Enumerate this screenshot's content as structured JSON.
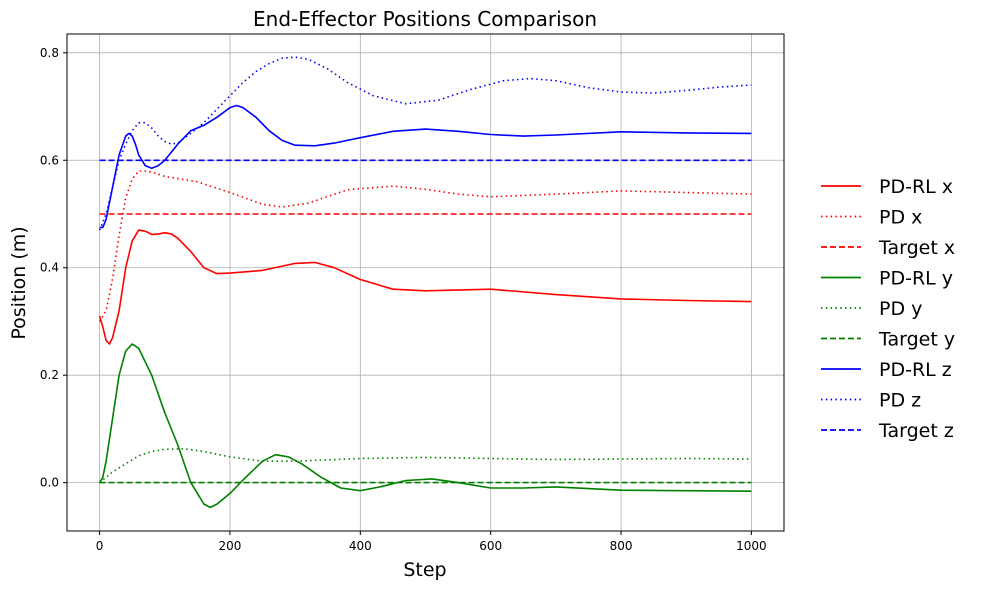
{
  "chart_data": {
    "type": "line",
    "title": "End-Effector Positions Comparison",
    "xlabel": "Step",
    "ylabel": "Position (m)",
    "xlim": [
      -50,
      1050
    ],
    "ylim": [
      -0.09,
      0.835
    ],
    "xticks": [
      0,
      200,
      400,
      600,
      800,
      1000
    ],
    "xtick_labels": [
      "0",
      "200",
      "400",
      "600",
      "800",
      "1000"
    ],
    "yticks": [
      0.0,
      0.2,
      0.4,
      0.6,
      0.8
    ],
    "ytick_labels": [
      "0.0",
      "0.2",
      "0.4",
      "0.6",
      "0.8"
    ],
    "grid": true,
    "legend_position": "right",
    "series": [
      {
        "name": "PD-RL x",
        "color": "#ff0000",
        "style": "solid",
        "x": [
          0,
          5,
          10,
          15,
          20,
          30,
          40,
          50,
          60,
          70,
          80,
          90,
          100,
          110,
          120,
          140,
          160,
          180,
          200,
          250,
          300,
          330,
          360,
          400,
          450,
          500,
          600,
          700,
          800,
          900,
          1000
        ],
        "y": [
          0.31,
          0.29,
          0.265,
          0.258,
          0.27,
          0.32,
          0.4,
          0.45,
          0.47,
          0.468,
          0.462,
          0.463,
          0.465,
          0.463,
          0.455,
          0.43,
          0.4,
          0.389,
          0.39,
          0.395,
          0.408,
          0.41,
          0.4,
          0.378,
          0.36,
          0.357,
          0.36,
          0.35,
          0.342,
          0.339,
          0.337
        ]
      },
      {
        "name": "PD x",
        "color": "#ff0000",
        "style": "dotted",
        "x": [
          0,
          5,
          10,
          20,
          30,
          40,
          50,
          60,
          70,
          80,
          100,
          150,
          200,
          250,
          280,
          320,
          380,
          450,
          500,
          550,
          600,
          700,
          800,
          900,
          1000
        ],
        "y": [
          0.3,
          0.31,
          0.32,
          0.38,
          0.46,
          0.53,
          0.565,
          0.58,
          0.58,
          0.578,
          0.57,
          0.56,
          0.54,
          0.518,
          0.513,
          0.52,
          0.545,
          0.552,
          0.546,
          0.537,
          0.532,
          0.537,
          0.543,
          0.54,
          0.537
        ]
      },
      {
        "name": "Target x",
        "color": "#ff0000",
        "style": "dashed",
        "x": [
          0,
          1000
        ],
        "y": [
          0.5,
          0.5
        ]
      },
      {
        "name": "PD-RL y",
        "color": "#008000",
        "style": "solid",
        "x": [
          0,
          5,
          10,
          20,
          30,
          40,
          50,
          60,
          80,
          100,
          120,
          140,
          160,
          170,
          180,
          200,
          220,
          250,
          270,
          290,
          310,
          340,
          370,
          400,
          430,
          470,
          510,
          550,
          600,
          650,
          700,
          800,
          1000
        ],
        "y": [
          0.0,
          0.01,
          0.04,
          0.12,
          0.2,
          0.245,
          0.258,
          0.25,
          0.2,
          0.13,
          0.07,
          0.0,
          -0.04,
          -0.046,
          -0.04,
          -0.02,
          0.005,
          0.04,
          0.052,
          0.048,
          0.035,
          0.01,
          -0.01,
          -0.015,
          -0.008,
          0.004,
          0.007,
          0.0,
          -0.01,
          -0.01,
          -0.008,
          -0.014,
          -0.016
        ]
      },
      {
        "name": "PD y",
        "color": "#008000",
        "style": "dotted",
        "x": [
          0,
          10,
          20,
          40,
          60,
          80,
          100,
          130,
          160,
          200,
          250,
          300,
          400,
          500,
          600,
          700,
          800,
          900,
          1000
        ],
        "y": [
          0.0,
          0.01,
          0.02,
          0.035,
          0.05,
          0.058,
          0.062,
          0.063,
          0.058,
          0.048,
          0.04,
          0.04,
          0.045,
          0.047,
          0.045,
          0.043,
          0.044,
          0.045,
          0.044
        ]
      },
      {
        "name": "Target y",
        "color": "#008000",
        "style": "dashed",
        "x": [
          0,
          1000
        ],
        "y": [
          0.0,
          0.0
        ]
      },
      {
        "name": "PD-RL z",
        "color": "#0000ff",
        "style": "solid",
        "x": [
          0,
          5,
          10,
          20,
          30,
          40,
          45,
          50,
          55,
          60,
          70,
          80,
          90,
          100,
          110,
          120,
          140,
          160,
          180,
          200,
          210,
          220,
          240,
          260,
          280,
          300,
          330,
          360,
          400,
          450,
          500,
          550,
          600,
          650,
          700,
          800,
          900,
          1000
        ],
        "y": [
          0.475,
          0.475,
          0.49,
          0.55,
          0.61,
          0.645,
          0.65,
          0.645,
          0.63,
          0.61,
          0.59,
          0.585,
          0.59,
          0.6,
          0.615,
          0.63,
          0.655,
          0.665,
          0.68,
          0.698,
          0.702,
          0.698,
          0.68,
          0.655,
          0.637,
          0.628,
          0.627,
          0.632,
          0.642,
          0.654,
          0.658,
          0.654,
          0.648,
          0.645,
          0.647,
          0.653,
          0.651,
          0.65
        ]
      },
      {
        "name": "PD z",
        "color": "#0000ff",
        "style": "dotted",
        "x": [
          0,
          10,
          20,
          30,
          40,
          50,
          60,
          70,
          80,
          90,
          100,
          110,
          120,
          140,
          160,
          180,
          200,
          220,
          240,
          260,
          280,
          300,
          320,
          350,
          380,
          420,
          470,
          520,
          570,
          620,
          660,
          700,
          750,
          800,
          850,
          900,
          950,
          1000
        ],
        "y": [
          0.47,
          0.5,
          0.55,
          0.6,
          0.63,
          0.655,
          0.67,
          0.67,
          0.66,
          0.645,
          0.635,
          0.63,
          0.632,
          0.65,
          0.67,
          0.695,
          0.72,
          0.745,
          0.765,
          0.78,
          0.79,
          0.792,
          0.788,
          0.77,
          0.745,
          0.72,
          0.705,
          0.712,
          0.732,
          0.748,
          0.752,
          0.748,
          0.735,
          0.727,
          0.725,
          0.73,
          0.736,
          0.74
        ]
      },
      {
        "name": "Target z",
        "color": "#0000ff",
        "style": "dashed",
        "x": [
          0,
          1000
        ],
        "y": [
          0.6,
          0.6
        ]
      }
    ]
  }
}
